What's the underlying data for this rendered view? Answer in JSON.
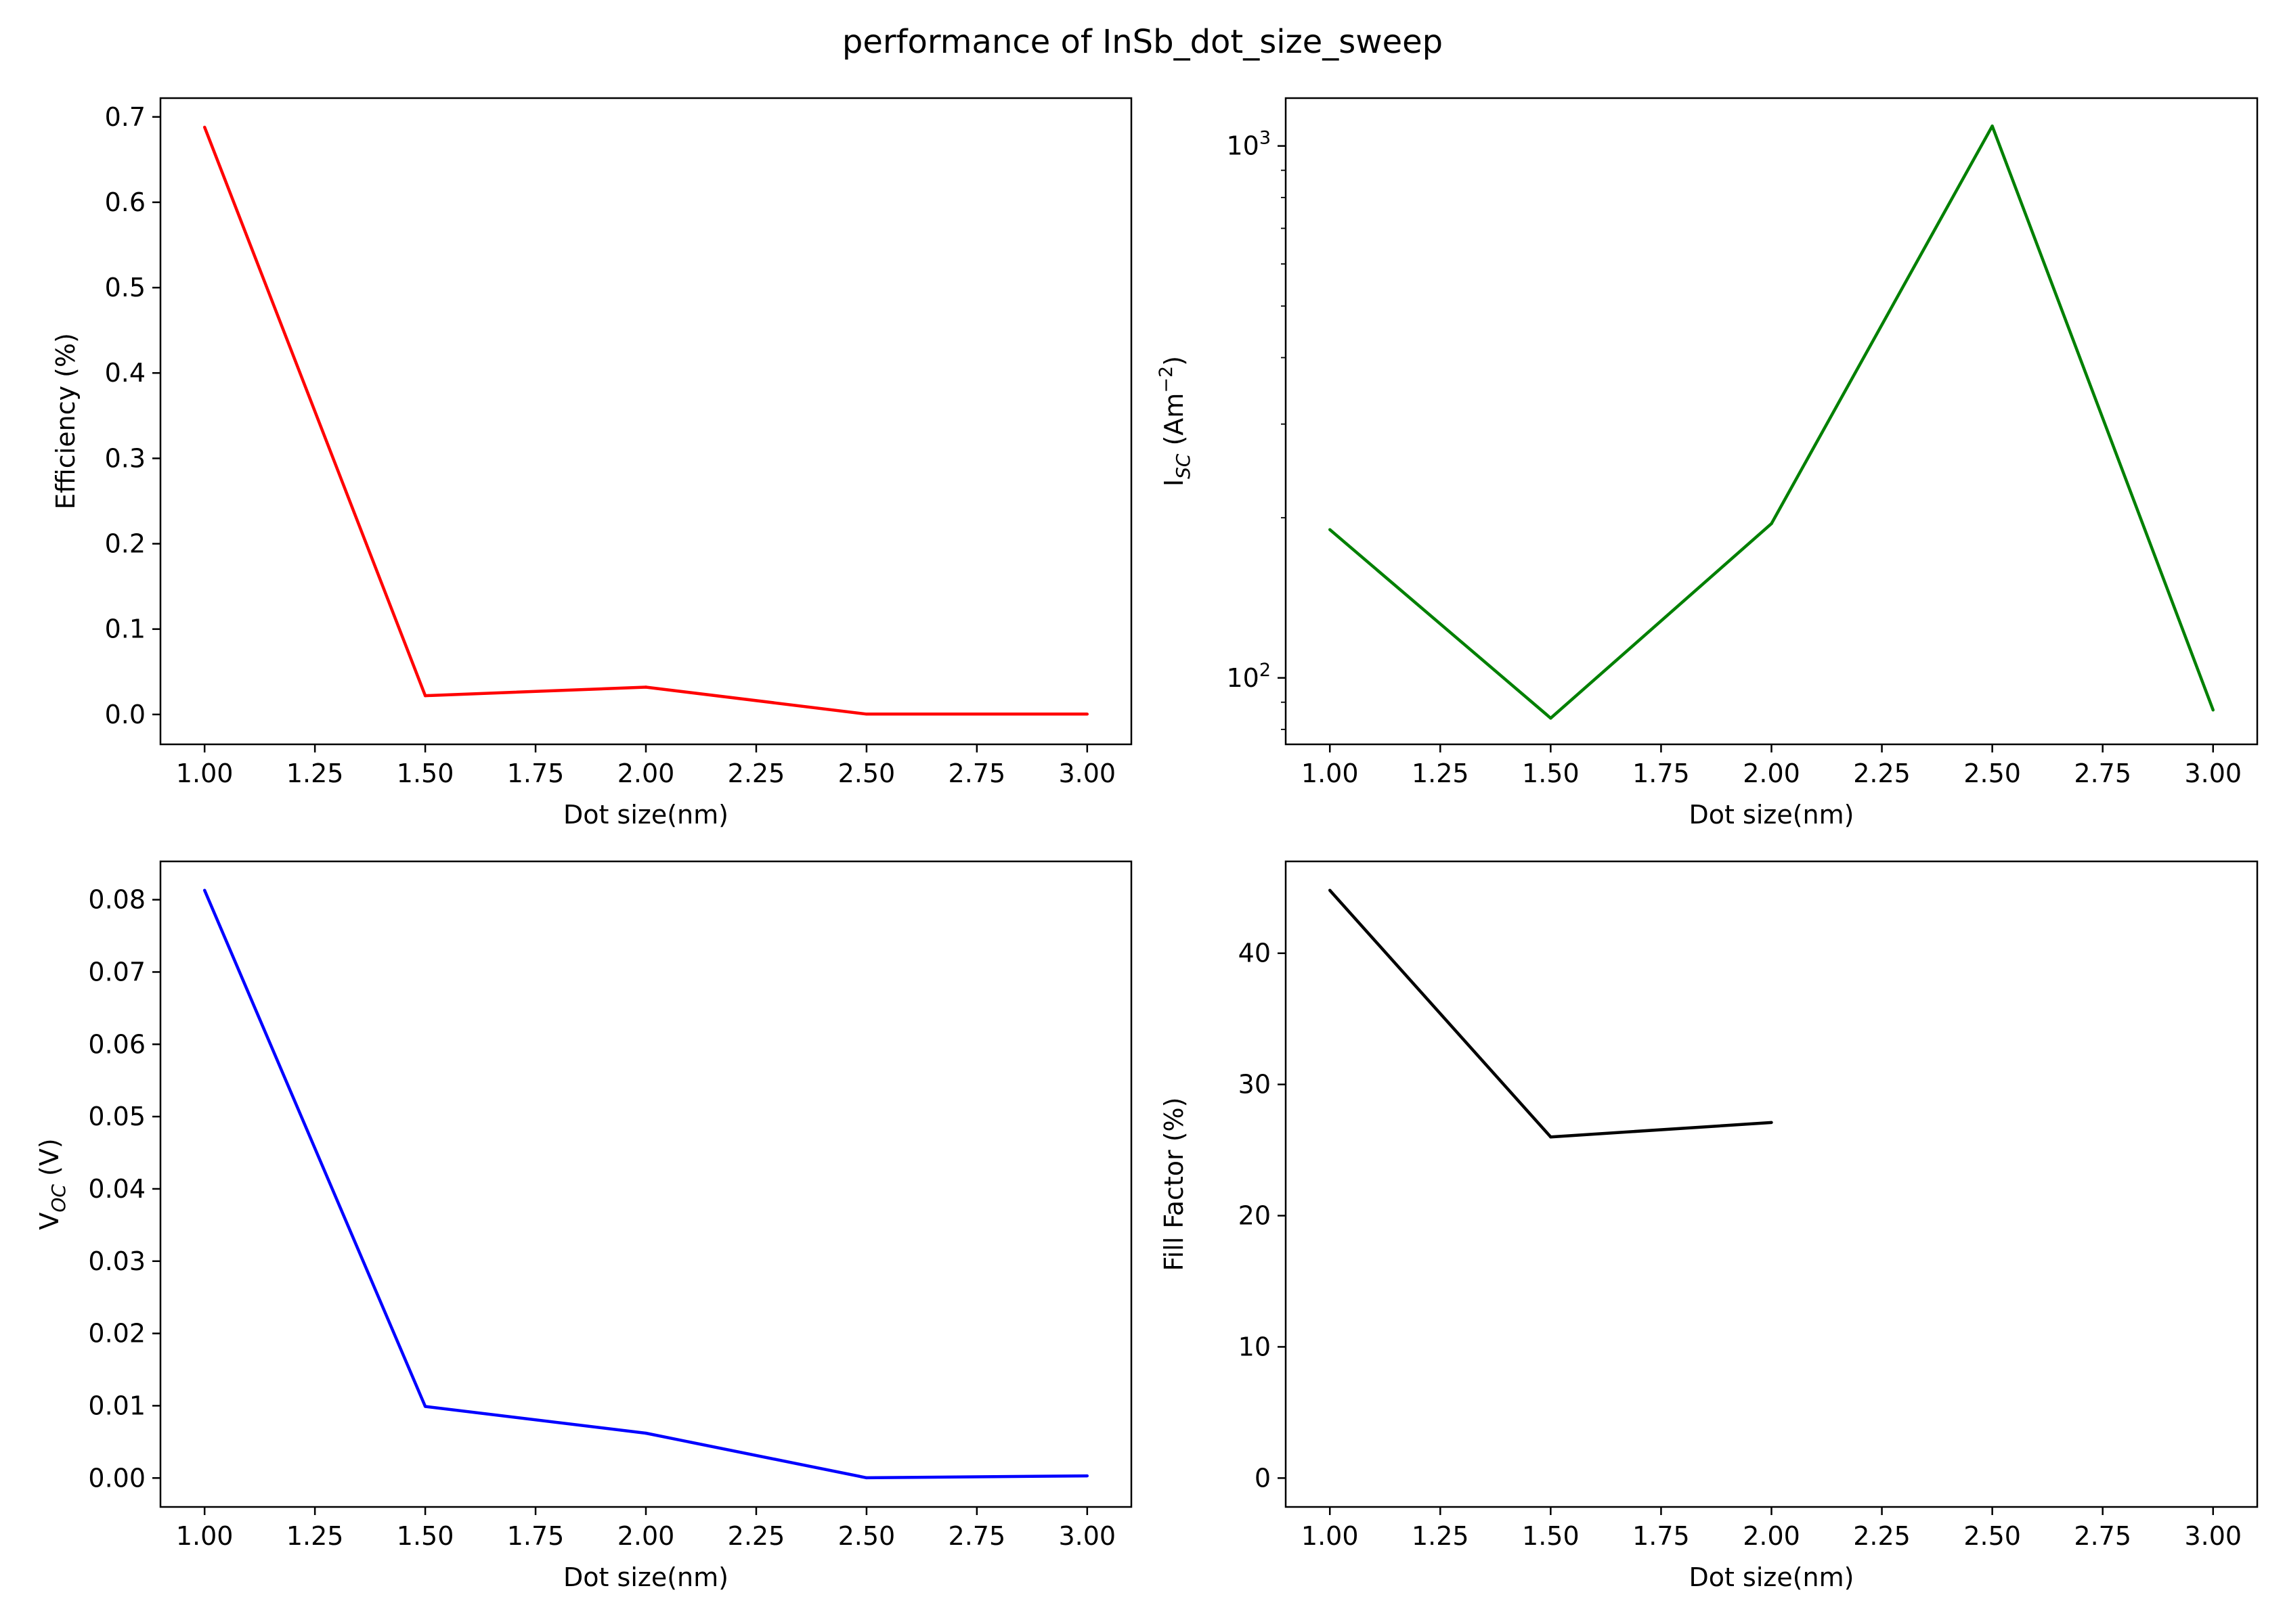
{
  "figure": {
    "suptitle": "performance of InSb_dot_size_sweep"
  },
  "chart_data": [
    {
      "type": "line",
      "xlabel": "Dot size(nm)",
      "ylabel": "Efficiency (%)",
      "color": "#ff0000",
      "x": [
        1.0,
        1.5,
        2.0,
        2.5,
        3.0
      ],
      "y": [
        0.688,
        0.022,
        0.032,
        0.0004,
        0.0004
      ],
      "xlim": [
        0.9,
        3.1
      ],
      "ylim": [
        -0.035,
        0.722
      ],
      "yscale": "linear",
      "xticks": [
        1.0,
        1.25,
        1.5,
        1.75,
        2.0,
        2.25,
        2.5,
        2.75,
        3.0
      ],
      "xtick_labels": [
        "1.00",
        "1.25",
        "1.50",
        "1.75",
        "2.00",
        "2.25",
        "2.50",
        "2.75",
        "3.00"
      ],
      "yticks": [
        0.0,
        0.1,
        0.2,
        0.3,
        0.4,
        0.5,
        0.6,
        0.7
      ],
      "ytick_labels": [
        "0.0",
        "0.1",
        "0.2",
        "0.3",
        "0.4",
        "0.5",
        "0.6",
        "0.7"
      ],
      "grid": false
    },
    {
      "type": "line",
      "xlabel": "Dot size(nm)",
      "ylabel": "I_SC (Am^-2)",
      "ylabel_main": "I",
      "ylabel_sub": "SC",
      "ylabel_unit": " (Am",
      "ylabel_sup": "−2",
      "ylabel_close": ")",
      "color": "#008000",
      "x": [
        1.0,
        1.5,
        2.0,
        2.5,
        3.0
      ],
      "y": [
        190,
        84,
        195,
        1090,
        87
      ],
      "xlim": [
        0.9,
        3.1
      ],
      "ylim": [
        75,
        1230
      ],
      "yscale": "log",
      "xticks": [
        1.0,
        1.25,
        1.5,
        1.75,
        2.0,
        2.25,
        2.5,
        2.75,
        3.0
      ],
      "xtick_labels": [
        "1.00",
        "1.25",
        "1.50",
        "1.75",
        "2.00",
        "2.25",
        "2.50",
        "2.75",
        "3.00"
      ],
      "yticks": [
        100,
        1000
      ],
      "ytick_base": [
        "10",
        "10"
      ],
      "ytick_exp": [
        "2",
        "3"
      ],
      "minor_yticks": [
        80,
        90,
        200,
        300,
        400,
        500,
        600,
        700,
        800,
        900
      ],
      "grid": false
    },
    {
      "type": "line",
      "xlabel": "Dot size(nm)",
      "ylabel": "V_OC (V)",
      "ylabel_main": "V",
      "ylabel_sub": "OC",
      "ylabel_unit": " (V)",
      "color": "#0000ff",
      "x": [
        1.0,
        1.5,
        2.0,
        2.5,
        3.0
      ],
      "y": [
        0.0813,
        0.0099,
        0.0062,
        3e-05,
        0.0003
      ],
      "xlim": [
        0.9,
        3.1
      ],
      "ylim": [
        -0.004,
        0.0853
      ],
      "yscale": "linear",
      "xticks": [
        1.0,
        1.25,
        1.5,
        1.75,
        2.0,
        2.25,
        2.5,
        2.75,
        3.0
      ],
      "xtick_labels": [
        "1.00",
        "1.25",
        "1.50",
        "1.75",
        "2.00",
        "2.25",
        "2.50",
        "2.75",
        "3.00"
      ],
      "yticks": [
        0.0,
        0.01,
        0.02,
        0.03,
        0.04,
        0.05,
        0.06,
        0.07,
        0.08
      ],
      "ytick_labels": [
        "0.00",
        "0.01",
        "0.02",
        "0.03",
        "0.04",
        "0.05",
        "0.06",
        "0.07",
        "0.08"
      ],
      "grid": false
    },
    {
      "type": "line",
      "xlabel": "Dot size(nm)",
      "ylabel": "Fill Factor (%)",
      "color": "#000000",
      "x": [
        1.0,
        1.5,
        2.0
      ],
      "y": [
        44.8,
        26.0,
        27.1
      ],
      "xlim": [
        0.9,
        3.1
      ],
      "ylim": [
        -2.2,
        47.0
      ],
      "yscale": "linear",
      "xticks": [
        1.0,
        1.25,
        1.5,
        1.75,
        2.0,
        2.25,
        2.5,
        2.75,
        3.0
      ],
      "xtick_labels": [
        "1.00",
        "1.25",
        "1.50",
        "1.75",
        "2.00",
        "2.25",
        "2.50",
        "2.75",
        "3.00"
      ],
      "yticks": [
        0,
        10,
        20,
        30,
        40
      ],
      "ytick_labels": [
        "0",
        "10",
        "20",
        "30",
        "40"
      ],
      "grid": false
    }
  ]
}
